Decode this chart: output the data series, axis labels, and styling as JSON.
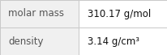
{
  "rows": [
    {
      "label": "molar mass",
      "value": "310.17 g/mol"
    },
    {
      "label": "density",
      "value": "3.14 g/cm³"
    }
  ],
  "bg_color": "#f0f0f0",
  "left_col_bg": "#f0f0f0",
  "right_col_bg": "#ffffff",
  "border_color": "#c8c8c8",
  "label_color": "#555555",
  "value_color": "#111111",
  "label_fontsize": 8.5,
  "value_fontsize": 8.5,
  "col_split": 0.47
}
